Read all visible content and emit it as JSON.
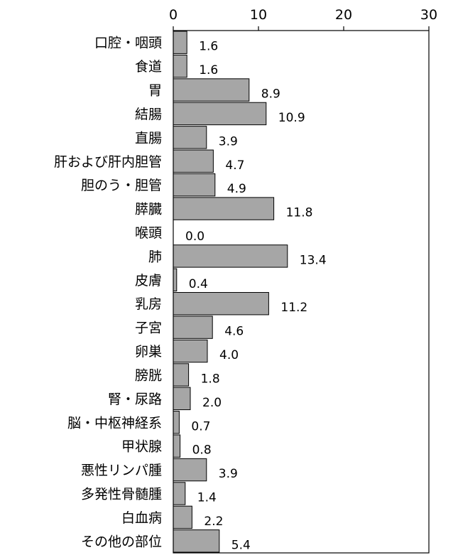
{
  "chart_data": {
    "type": "bar",
    "orientation": "horizontal",
    "title": "",
    "xlabel": "",
    "ylabel": "",
    "xlim": [
      0,
      30
    ],
    "ticks": [
      "0",
      "10",
      "20",
      "30"
    ],
    "tick_values": [
      0,
      10,
      20,
      30
    ],
    "grid": false,
    "legend": "none",
    "bar_color": "#a6a6a6",
    "categories": [
      "口腔・咽頭",
      "食道",
      "胃",
      "結腸",
      "直腸",
      "肝および肝内胆管",
      "胆のう・胆管",
      "膵臓",
      "喉頭",
      "肺",
      "皮膚",
      "乳房",
      "子宮",
      "卵巣",
      "膀胱",
      "腎・尿路",
      "脳・中枢神経系",
      "甲状腺",
      "悪性リンパ腫",
      "多発性骨髄腫",
      "白血病",
      "その他の部位"
    ],
    "values": [
      1.6,
      1.6,
      8.9,
      10.9,
      3.9,
      4.7,
      4.9,
      11.8,
      0.0,
      13.4,
      0.4,
      11.2,
      4.6,
      4.0,
      1.8,
      2.0,
      0.7,
      0.8,
      3.9,
      1.4,
      2.2,
      5.4
    ],
    "value_labels": [
      "1.6",
      "1.6",
      "8.9",
      "10.9",
      "3.9",
      "4.7",
      "4.9",
      "11.8",
      "0.0",
      "13.4",
      "0.4",
      "11.2",
      "4.6",
      "4.0",
      "1.8",
      "2.0",
      "0.7",
      "0.8",
      "3.9",
      "1.4",
      "2.2",
      "5.4"
    ]
  }
}
